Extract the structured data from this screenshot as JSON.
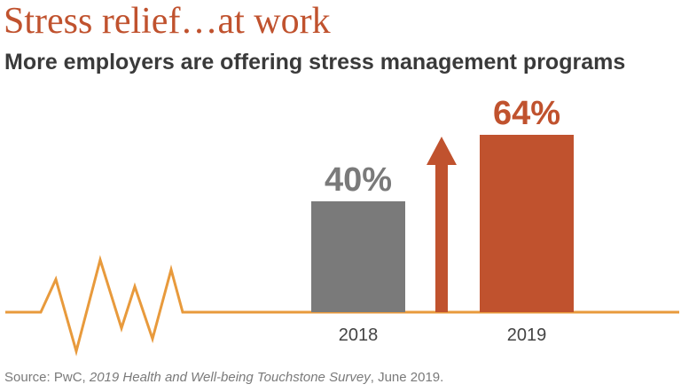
{
  "title": "Stress relief…at work",
  "subtitle": "More employers are offering stress management programs",
  "source": {
    "prefix": "Source: PwC, ",
    "italic": "2019 Health and Well-being Touchstone Survey",
    "suffix": ", June 2019."
  },
  "colors": {
    "accent": "#c0522e",
    "gray_bar": "#7a7a7a",
    "line": "#e89a3c",
    "text_dark": "#3a3a3a",
    "text_mid": "#444444"
  },
  "icons": {
    "arrow": "up-arrow-icon",
    "pulse": "heartbeat-pulse-icon"
  },
  "chart_data": {
    "type": "bar",
    "title": "Stress relief…at work",
    "subtitle": "More employers are offering stress management programs",
    "categories": [
      "2018",
      "2019"
    ],
    "values": [
      40,
      64
    ],
    "value_labels": [
      "40%",
      "64%"
    ],
    "unit": "%",
    "xlabel": "",
    "ylabel": "",
    "ylim": [
      0,
      64
    ],
    "grid": false,
    "legend": "none",
    "annotations": [
      "upward arrow indicating increase"
    ]
  }
}
